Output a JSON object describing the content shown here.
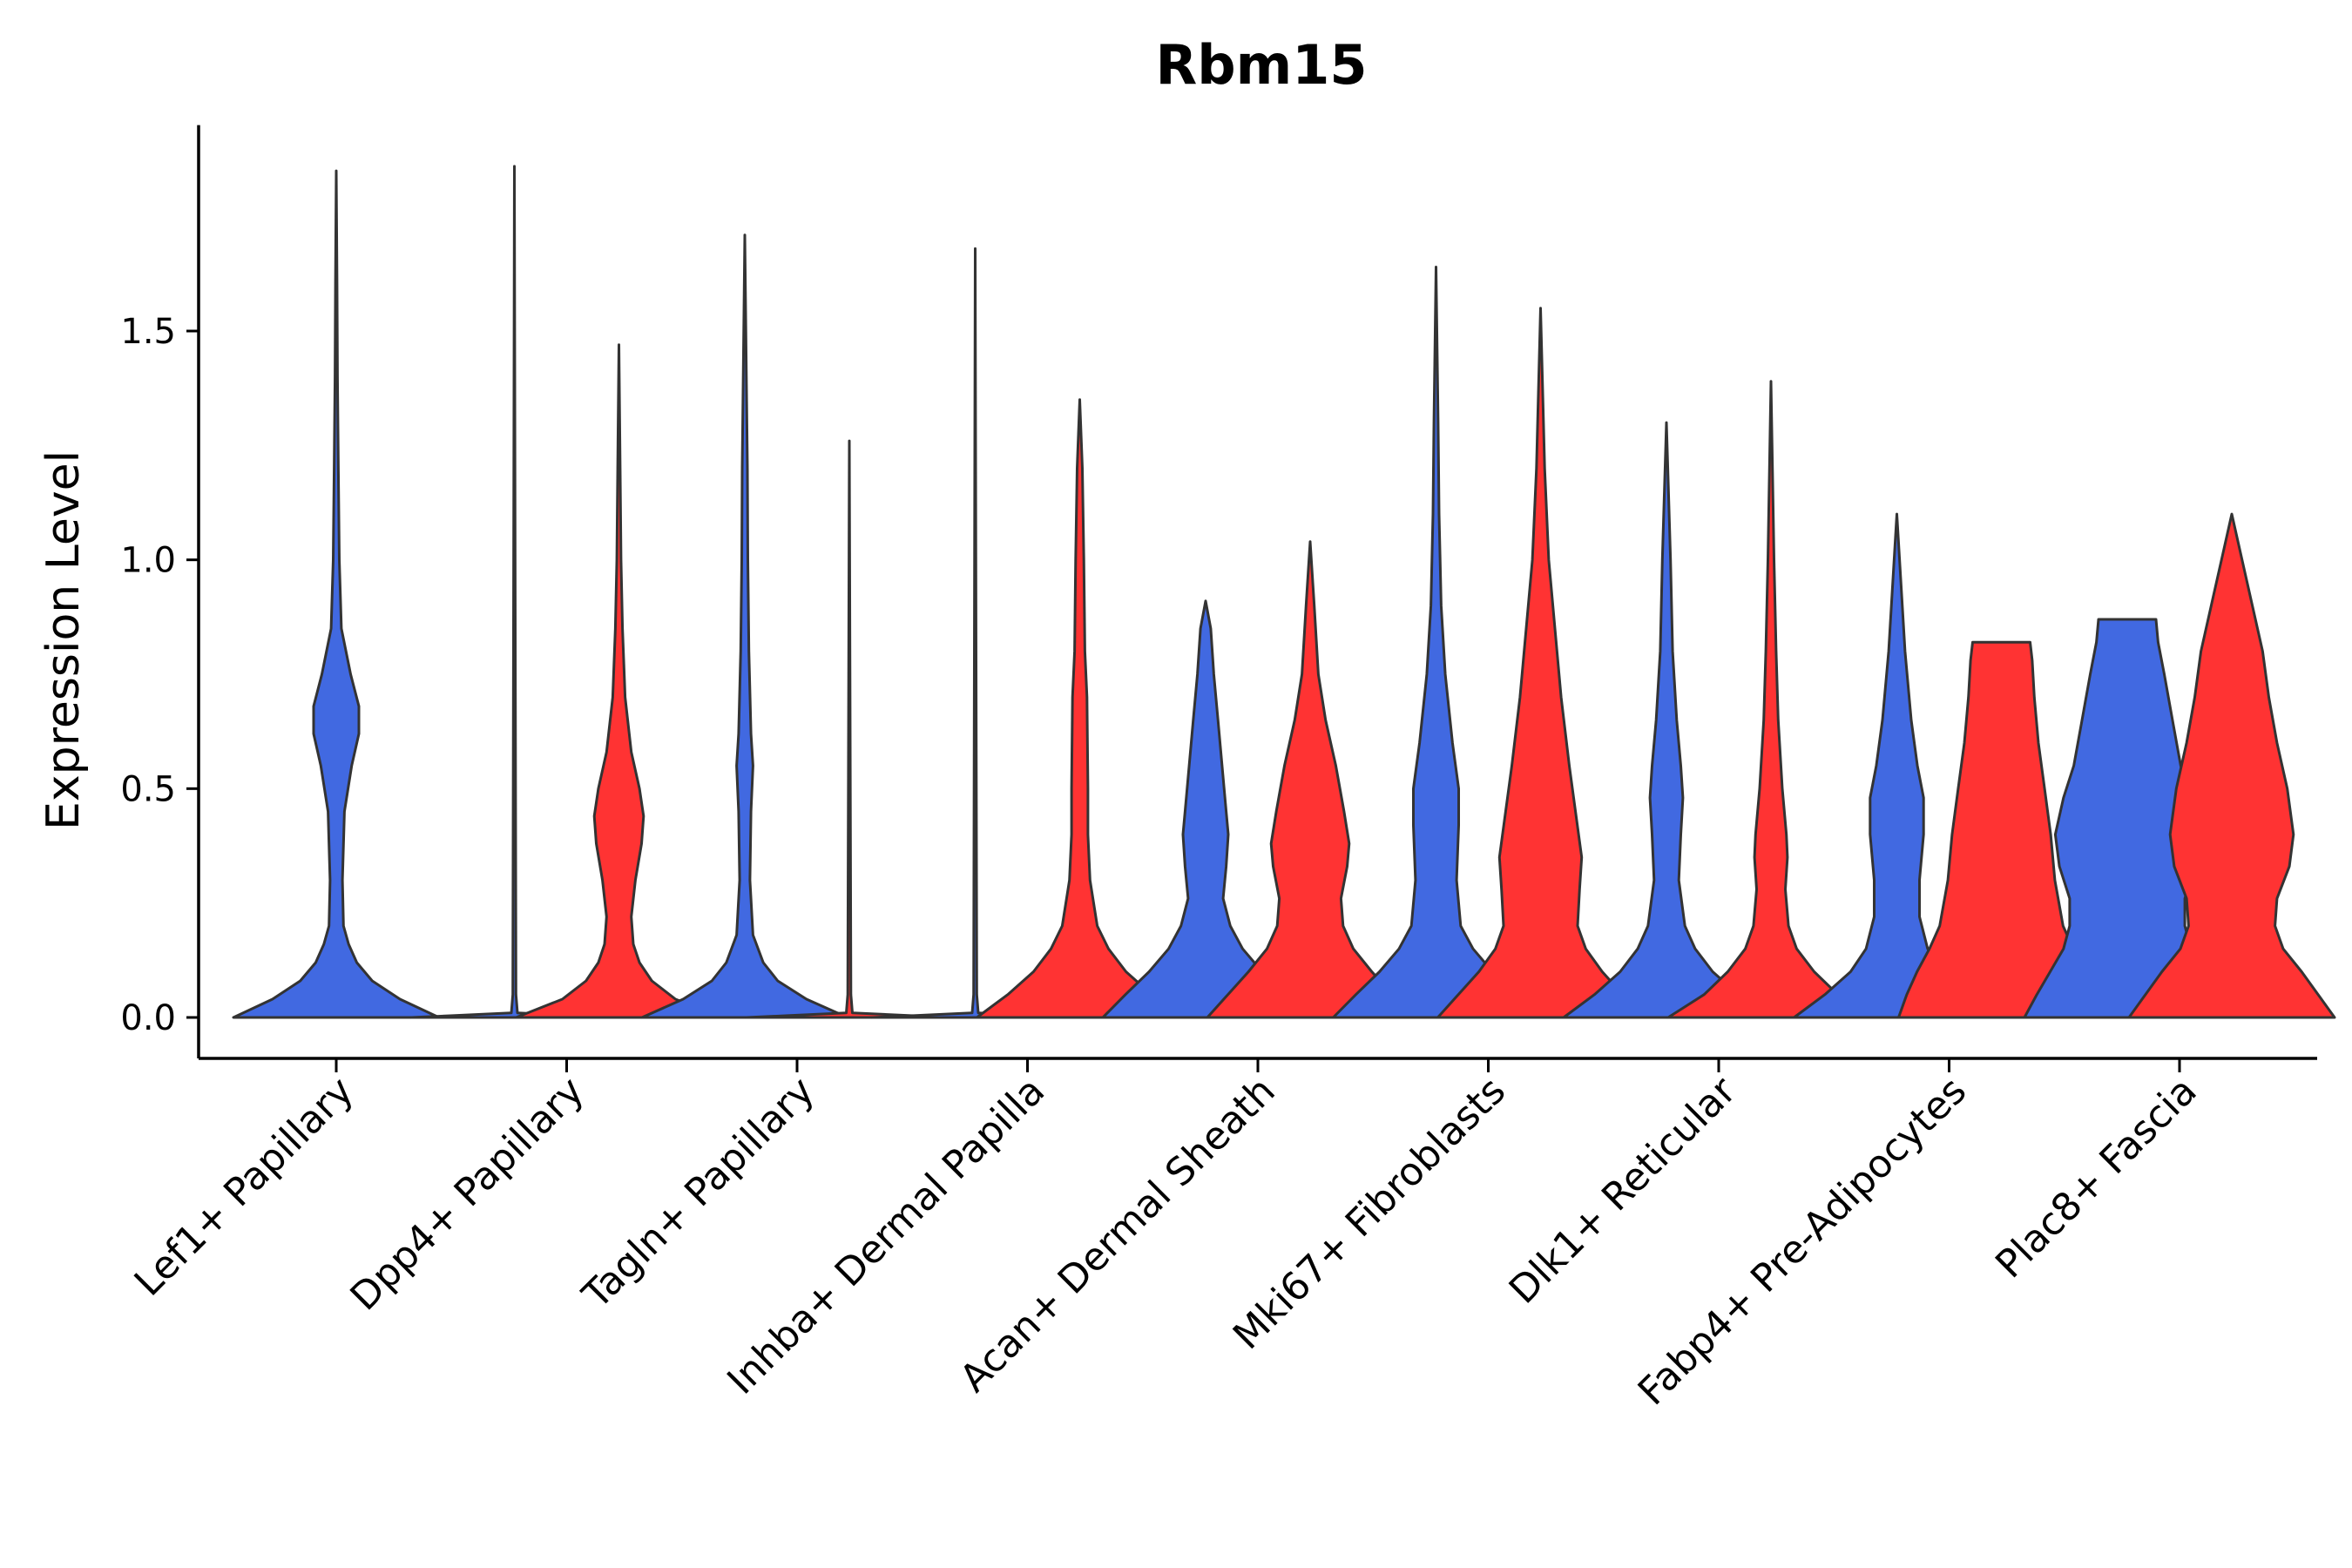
{
  "chart_data": {
    "type": "violin",
    "title": "Rbm15",
    "xlabel": "",
    "ylabel": "Expression Level",
    "ylim": [
      -0.09,
      1.95
    ],
    "yticks": [
      {
        "value": 0.0,
        "label": "0.0"
      },
      {
        "value": 0.5,
        "label": "0.5"
      },
      {
        "value": 1.0,
        "label": "1.0"
      },
      {
        "value": 1.5,
        "label": "1.5"
      }
    ],
    "grid": false,
    "legend": "none",
    "series_colors": {
      "blue": "#4169E1",
      "red": "#FF3333"
    },
    "outline_color": "#333333",
    "categories": [
      {
        "label": "Lef1+ Papillary",
        "violins": [
          {
            "color": "blue",
            "ymax": 1.85,
            "shape": [
              [
                0,
                1.0
              ],
              [
                0.04,
                0.62
              ],
              [
                0.08,
                0.35
              ],
              [
                0.12,
                0.2
              ],
              [
                0.16,
                0.12
              ],
              [
                0.2,
                0.07
              ],
              [
                0.3,
                0.06
              ],
              [
                0.45,
                0.08
              ],
              [
                0.55,
                0.15
              ],
              [
                0.62,
                0.22
              ],
              [
                0.68,
                0.22
              ],
              [
                0.75,
                0.14
              ],
              [
                0.85,
                0.05
              ],
              [
                1.0,
                0.03
              ],
              [
                1.2,
                0.02
              ],
              [
                1.4,
                0.012
              ],
              [
                1.6,
                0.008
              ],
              [
                1.85,
                0
              ]
            ]
          }
        ]
      },
      {
        "label": "Dpp4+ Papillary",
        "violins": [
          {
            "color": "blue",
            "ymax": 1.86,
            "shape": [
              [
                0,
                1.0
              ],
              [
                0.004,
                0.6
              ],
              [
                0.01,
                0.03
              ],
              [
                0.05,
                0.015
              ],
              [
                1.86,
                0
              ]
            ]
          },
          {
            "color": "red",
            "ymax": 1.47,
            "shape": [
              [
                0,
                1.0
              ],
              [
                0.04,
                0.55
              ],
              [
                0.08,
                0.32
              ],
              [
                0.12,
                0.2
              ],
              [
                0.16,
                0.14
              ],
              [
                0.22,
                0.12
              ],
              [
                0.3,
                0.16
              ],
              [
                0.38,
                0.22
              ],
              [
                0.44,
                0.24
              ],
              [
                0.5,
                0.2
              ],
              [
                0.58,
                0.12
              ],
              [
                0.7,
                0.06
              ],
              [
                0.85,
                0.035
              ],
              [
                1.0,
                0.02
              ],
              [
                1.2,
                0.012
              ],
              [
                1.47,
                0
              ]
            ]
          }
        ]
      },
      {
        "label": "Tagln+ Papillary",
        "violins": [
          {
            "color": "blue",
            "ymax": 1.71,
            "shape": [
              [
                0,
                1.0
              ],
              [
                0.04,
                0.6
              ],
              [
                0.08,
                0.32
              ],
              [
                0.12,
                0.18
              ],
              [
                0.18,
                0.08
              ],
              [
                0.3,
                0.05
              ],
              [
                0.45,
                0.06
              ],
              [
                0.55,
                0.08
              ],
              [
                0.62,
                0.06
              ],
              [
                0.8,
                0.04
              ],
              [
                1.0,
                0.03
              ],
              [
                1.2,
                0.025
              ],
              [
                1.4,
                0.015
              ],
              [
                1.71,
                0
              ]
            ]
          },
          {
            "color": "red",
            "ymax": 1.26,
            "shape": [
              [
                0,
                1.0
              ],
              [
                0.004,
                0.6
              ],
              [
                0.01,
                0.03
              ],
              [
                0.05,
                0.015
              ],
              [
                1.26,
                0
              ]
            ]
          }
        ]
      },
      {
        "label": "Inhba+ Dermal Papilla",
        "violins": [
          {
            "color": "blue",
            "ymax": 1.68,
            "shape": [
              [
                0,
                1.0
              ],
              [
                0.004,
                0.6
              ],
              [
                0.01,
                0.03
              ],
              [
                0.05,
                0.015
              ],
              [
                1.68,
                0
              ]
            ]
          },
          {
            "color": "red",
            "ymax": 1.35,
            "shape": [
              [
                0,
                1.0
              ],
              [
                0.05,
                0.7
              ],
              [
                0.1,
                0.45
              ],
              [
                0.15,
                0.28
              ],
              [
                0.2,
                0.17
              ],
              [
                0.3,
                0.1
              ],
              [
                0.4,
                0.08
              ],
              [
                0.5,
                0.08
              ],
              [
                0.7,
                0.07
              ],
              [
                0.8,
                0.05
              ],
              [
                1.0,
                0.04
              ],
              [
                1.2,
                0.025
              ],
              [
                1.35,
                0
              ]
            ]
          }
        ]
      },
      {
        "label": "Acan+ Dermal Sheath",
        "violins": [
          {
            "color": "blue",
            "ymax": 0.91,
            "shape": [
              [
                0,
                1.0
              ],
              [
                0.05,
                0.78
              ],
              [
                0.1,
                0.55
              ],
              [
                0.15,
                0.36
              ],
              [
                0.2,
                0.24
              ],
              [
                0.26,
                0.17
              ],
              [
                0.33,
                0.2
              ],
              [
                0.4,
                0.22
              ],
              [
                0.45,
                0.2
              ],
              [
                0.55,
                0.16
              ],
              [
                0.65,
                0.12
              ],
              [
                0.75,
                0.08
              ],
              [
                0.85,
                0.05
              ],
              [
                0.91,
                0
              ]
            ]
          },
          {
            "color": "red",
            "ymax": 1.04,
            "shape": [
              [
                0,
                1.0
              ],
              [
                0.05,
                0.8
              ],
              [
                0.1,
                0.6
              ],
              [
                0.15,
                0.42
              ],
              [
                0.2,
                0.32
              ],
              [
                0.26,
                0.3
              ],
              [
                0.33,
                0.36
              ],
              [
                0.38,
                0.38
              ],
              [
                0.45,
                0.33
              ],
              [
                0.55,
                0.25
              ],
              [
                0.65,
                0.15
              ],
              [
                0.75,
                0.08
              ],
              [
                0.9,
                0.04
              ],
              [
                1.04,
                0
              ]
            ]
          }
        ]
      },
      {
        "label": "Mki67+ Fibroblasts",
        "violins": [
          {
            "color": "blue",
            "ymax": 1.64,
            "shape": [
              [
                0,
                1.0
              ],
              [
                0.05,
                0.78
              ],
              [
                0.1,
                0.55
              ],
              [
                0.15,
                0.36
              ],
              [
                0.2,
                0.24
              ],
              [
                0.3,
                0.2
              ],
              [
                0.42,
                0.22
              ],
              [
                0.5,
                0.22
              ],
              [
                0.6,
                0.16
              ],
              [
                0.75,
                0.09
              ],
              [
                0.9,
                0.05
              ],
              [
                1.1,
                0.03
              ],
              [
                1.3,
                0.02
              ],
              [
                1.64,
                0
              ]
            ]
          },
          {
            "color": "red",
            "ymax": 1.55,
            "shape": [
              [
                0,
                1.0
              ],
              [
                0.05,
                0.8
              ],
              [
                0.1,
                0.6
              ],
              [
                0.15,
                0.44
              ],
              [
                0.2,
                0.36
              ],
              [
                0.28,
                0.38
              ],
              [
                0.35,
                0.4
              ],
              [
                0.45,
                0.34
              ],
              [
                0.55,
                0.28
              ],
              [
                0.7,
                0.2
              ],
              [
                0.85,
                0.14
              ],
              [
                1.0,
                0.08
              ],
              [
                1.2,
                0.04
              ],
              [
                1.55,
                0
              ]
            ]
          }
        ]
      },
      {
        "label": "Dlk1+ Reticular",
        "violins": [
          {
            "color": "blue",
            "ymax": 1.3,
            "shape": [
              [
                0,
                1.0
              ],
              [
                0.05,
                0.7
              ],
              [
                0.1,
                0.45
              ],
              [
                0.15,
                0.28
              ],
              [
                0.2,
                0.18
              ],
              [
                0.3,
                0.12
              ],
              [
                0.4,
                0.14
              ],
              [
                0.48,
                0.16
              ],
              [
                0.55,
                0.14
              ],
              [
                0.65,
                0.1
              ],
              [
                0.8,
                0.06
              ],
              [
                1.0,
                0.04
              ],
              [
                1.3,
                0
              ]
            ]
          },
          {
            "color": "red",
            "ymax": 1.39,
            "shape": [
              [
                0,
                1.0
              ],
              [
                0.05,
                0.65
              ],
              [
                0.1,
                0.42
              ],
              [
                0.15,
                0.25
              ],
              [
                0.2,
                0.17
              ],
              [
                0.28,
                0.14
              ],
              [
                0.35,
                0.16
              ],
              [
                0.4,
                0.15
              ],
              [
                0.5,
                0.11
              ],
              [
                0.65,
                0.07
              ],
              [
                0.8,
                0.05
              ],
              [
                1.0,
                0.03
              ],
              [
                1.39,
                0
              ]
            ]
          }
        ]
      },
      {
        "label": "Fabp4+ Pre-Adipocytes",
        "violins": [
          {
            "color": "blue",
            "ymax": 1.1,
            "shape": [
              [
                0,
                1.0
              ],
              [
                0.05,
                0.7
              ],
              [
                0.1,
                0.45
              ],
              [
                0.15,
                0.3
              ],
              [
                0.22,
                0.22
              ],
              [
                0.3,
                0.22
              ],
              [
                0.4,
                0.26
              ],
              [
                0.48,
                0.26
              ],
              [
                0.55,
                0.2
              ],
              [
                0.65,
                0.14
              ],
              [
                0.8,
                0.08
              ],
              [
                0.95,
                0.04
              ],
              [
                1.1,
                0
              ]
            ]
          },
          {
            "color": "red",
            "ymax": 0.82,
            "shape": [
              [
                0,
                1.0
              ],
              [
                0.05,
                0.92
              ],
              [
                0.1,
                0.82
              ],
              [
                0.15,
                0.7
              ],
              [
                0.2,
                0.6
              ],
              [
                0.3,
                0.52
              ],
              [
                0.4,
                0.48
              ],
              [
                0.5,
                0.42
              ],
              [
                0.6,
                0.36
              ],
              [
                0.7,
                0.32
              ],
              [
                0.78,
                0.3
              ],
              [
                0.82,
                0.28
              ]
            ]
          }
        ]
      },
      {
        "label": "Plac8+ Fascia",
        "violins": [
          {
            "color": "blue",
            "ymax": 0.87,
            "shape": [
              [
                0,
                1.0
              ],
              [
                0.05,
                0.88
              ],
              [
                0.1,
                0.75
              ],
              [
                0.15,
                0.62
              ],
              [
                0.2,
                0.56
              ],
              [
                0.26,
                0.56
              ],
              [
                0.33,
                0.66
              ],
              [
                0.4,
                0.7
              ],
              [
                0.48,
                0.62
              ],
              [
                0.55,
                0.52
              ],
              [
                0.65,
                0.44
              ],
              [
                0.75,
                0.36
              ],
              [
                0.82,
                0.3
              ],
              [
                0.87,
                0.28
              ]
            ]
          },
          {
            "color": "red",
            "ymax": 1.1,
            "shape": [
              [
                0,
                1.0
              ],
              [
                0.05,
                0.84
              ],
              [
                0.1,
                0.68
              ],
              [
                0.15,
                0.5
              ],
              [
                0.2,
                0.42
              ],
              [
                0.26,
                0.44
              ],
              [
                0.33,
                0.56
              ],
              [
                0.4,
                0.6
              ],
              [
                0.5,
                0.54
              ],
              [
                0.6,
                0.44
              ],
              [
                0.7,
                0.36
              ],
              [
                0.8,
                0.3
              ],
              [
                0.9,
                0.2
              ],
              [
                1.0,
                0.1
              ],
              [
                1.1,
                0
              ]
            ]
          }
        ]
      }
    ]
  }
}
